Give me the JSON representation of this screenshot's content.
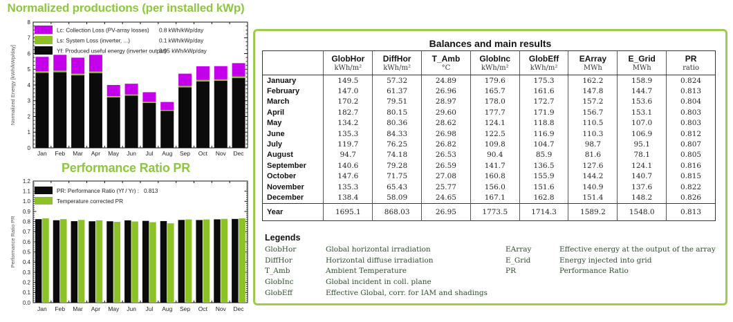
{
  "colors": {
    "title_green": "#8DC63F",
    "box_border_green": "#9CCB4E",
    "bar_magenta": "#C400EA",
    "bar_green": "#8CC226",
    "bar_black": "#0B0B0B",
    "axis": "#111111"
  },
  "chart_data": [
    {
      "type": "bar",
      "stacked": true,
      "title": "Normalized productions (per installed kWp)",
      "ylabel": "Normalized Energy [kWh/kWp/day]",
      "ylim": [
        0,
        8
      ],
      "grid": false,
      "legend_position": "top-left-inside",
      "categories": [
        "Jan",
        "Feb",
        "Mar",
        "Apr",
        "May",
        "Jun",
        "Jul",
        "Aug",
        "Sep",
        "Oct",
        "Nov",
        "Dec"
      ],
      "series": [
        {
          "name": "Yf: Produced useful energy  (inverter output)",
          "color_key": "bar_black",
          "values": [
            4.77,
            4.81,
            4.62,
            4.76,
            3.21,
            3.32,
            2.86,
            2.35,
            3.85,
            4.23,
            4.27,
            4.45
          ]
        },
        {
          "name": "Ls: System Loss  (inverter, ...)",
          "color_key": "bar_green",
          "values": [
            0.1,
            0.1,
            0.1,
            0.1,
            0.08,
            0.08,
            0.07,
            0.06,
            0.09,
            0.09,
            0.09,
            0.1
          ]
        },
        {
          "name": "Lc: Collection Loss (PV-array losses)",
          "color_key": "bar_magenta",
          "values": [
            0.92,
            1.01,
            1.02,
            1.06,
            0.71,
            0.68,
            0.61,
            0.51,
            0.78,
            0.87,
            0.84,
            0.84
          ]
        }
      ],
      "legend_rows": [
        {
          "color_key": "bar_magenta",
          "label": "Lc: Collection Loss (PV-array losses)",
          "value": "0.8 kWh/kWp/day"
        },
        {
          "color_key": "bar_green",
          "label": "Ls: System Loss  (inverter, ...)",
          "value": "0.1 kWh/kWp/day"
        },
        {
          "color_key": "bar_black",
          "label": "Yf: Produced useful energy  (inverter output)",
          "value": "3.95 kWh/kWp/day"
        }
      ]
    },
    {
      "type": "bar",
      "grouped": true,
      "title": "Performance Ratio PR",
      "ylabel": "Performance Ratio PR",
      "ylim": [
        0,
        1.2
      ],
      "grid": false,
      "legend_position": "top-left-inside",
      "categories": [
        "Jan",
        "Feb",
        "Mar",
        "Apr",
        "May",
        "Jun",
        "Jul",
        "Aug",
        "Sep",
        "Oct",
        "Nov",
        "Dec"
      ],
      "series": [
        {
          "name": "PR: Performance Ratio (Yf / Yr) :",
          "color_key": "bar_black",
          "values": [
            0.824,
            0.813,
            0.804,
            0.803,
            0.803,
            0.812,
            0.807,
            0.805,
            0.816,
            0.815,
            0.822,
            0.826
          ]
        },
        {
          "name": "Temperature corrected PR",
          "color_key": "bar_green",
          "values": [
            0.832,
            0.824,
            0.816,
            0.812,
            0.797,
            0.801,
            0.794,
            0.783,
            0.821,
            0.821,
            0.827,
            0.832
          ]
        }
      ],
      "legend_rows": [
        {
          "color_key": "bar_black",
          "label": "PR: Performance Ratio (Yf / Yr) :",
          "value": "0.813"
        },
        {
          "color_key": "bar_green",
          "label": "Temperature corrected PR",
          "value": ""
        }
      ]
    }
  ],
  "table": {
    "title": "Balances and main results",
    "columns": [
      "",
      "GlobHor",
      "DiffHor",
      "T_Amb",
      "GlobInc",
      "GlobEff",
      "EArray",
      "E_Grid",
      "PR"
    ],
    "units": [
      "",
      "kWh/m²",
      "kWh/m²",
      "°C",
      "kWh/m²",
      "kWh/m²",
      "MWh",
      "MWh",
      "ratio"
    ],
    "rows": [
      [
        "January",
        "149.5",
        "57.32",
        "24.89",
        "179.6",
        "175.3",
        "162.2",
        "158.9",
        "0.824"
      ],
      [
        "February",
        "147.0",
        "61.37",
        "26.96",
        "165.7",
        "161.6",
        "147.8",
        "144.7",
        "0.813"
      ],
      [
        "March",
        "170.2",
        "79.51",
        "28.97",
        "178.0",
        "172.7",
        "157.2",
        "153.6",
        "0.804"
      ],
      [
        "April",
        "182.7",
        "80.15",
        "29.60",
        "177.7",
        "171.9",
        "156.7",
        "153.1",
        "0.803"
      ],
      [
        "May",
        "134.2",
        "80.36",
        "28.62",
        "124.1",
        "118.8",
        "110.5",
        "107.0",
        "0.803"
      ],
      [
        "June",
        "135.3",
        "84.33",
        "26.98",
        "122.5",
        "116.9",
        "110.3",
        "106.9",
        "0.812"
      ],
      [
        "July",
        "119.7",
        "76.25",
        "26.82",
        "109.8",
        "104.7",
        "98.7",
        "95.1",
        "0.807"
      ],
      [
        "August",
        "94.7",
        "74.18",
        "26.53",
        "90.4",
        "85.9",
        "81.6",
        "78.1",
        "0.805"
      ],
      [
        "September",
        "140.6",
        "79.28",
        "26.59",
        "141.7",
        "136.5",
        "127.6",
        "124.1",
        "0.816"
      ],
      [
        "October",
        "147.6",
        "71.75",
        "27.08",
        "160.8",
        "155.9",
        "144.2",
        "140.7",
        "0.815"
      ],
      [
        "November",
        "135.3",
        "65.43",
        "25.77",
        "156.0",
        "151.6",
        "140.9",
        "137.6",
        "0.822"
      ],
      [
        "December",
        "138.4",
        "58.09",
        "24.65",
        "167.1",
        "162.8",
        "151.4",
        "148.2",
        "0.826"
      ]
    ],
    "total_row": [
      "Year",
      "1695.1",
      "868.03",
      "26.95",
      "1773.5",
      "1714.3",
      "1589.2",
      "1548.0",
      "0.813"
    ]
  },
  "legends": {
    "heading": "Legends",
    "left": [
      [
        "GlobHor",
        "Global horizontal irradiation"
      ],
      [
        "DiffHor",
        "Horizontal diffuse irradiation"
      ],
      [
        "T_Amb",
        "Ambient Temperature"
      ],
      [
        "GlobInc",
        "Global incident in coll. plane"
      ],
      [
        "GlobEff",
        "Effective Global, corr. for IAM and shadings"
      ]
    ],
    "right": [
      [
        "EArray",
        "Effective energy at the output of the array"
      ],
      [
        "E_Grid",
        "Energy injected into grid"
      ],
      [
        "PR",
        "Performance Ratio"
      ]
    ]
  }
}
